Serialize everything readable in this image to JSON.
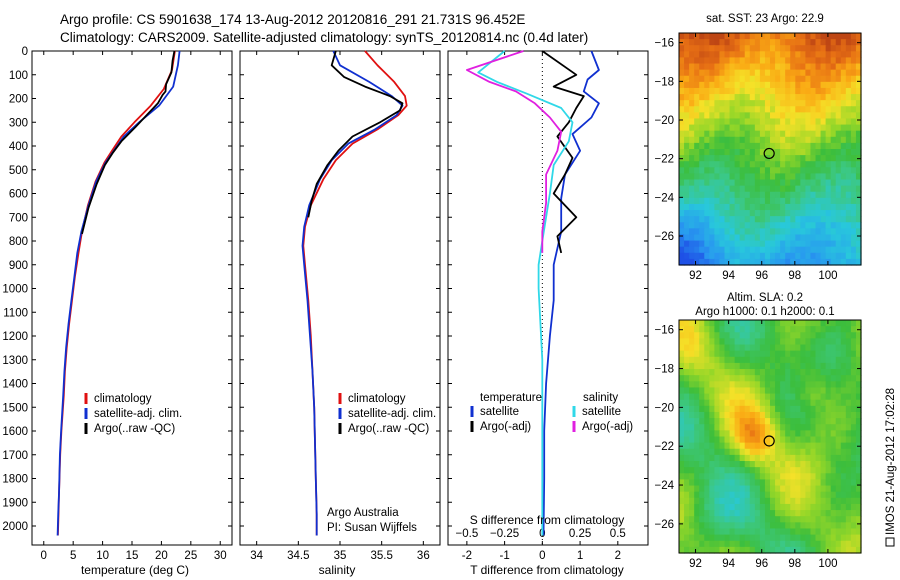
{
  "header": {
    "line1": "Argo profile: CS 5901638_174 13-Aug-2012 20120816_291 21.731S 96.452E",
    "line2": "Climatology: CARS2009. Satellite-adjusted climatology: synTS_20120814.nc (0.4d later)"
  },
  "side_stamp": "IMOS 21-Aug-2012 17:02:28",
  "colors": {
    "climatology": "#e01010",
    "satellite": "#1030d0",
    "argo": "#000000",
    "sal_satellite": "#30d8e8",
    "sal_argo": "#e020e0"
  },
  "chart_data": [
    {
      "type": "line",
      "panel": "temperature",
      "xlabel": "temperature (deg C)",
      "xlim": [
        -2,
        32
      ],
      "ylim": [
        2080,
        0
      ],
      "xticks": [
        0,
        5,
        10,
        15,
        20,
        25,
        30
      ],
      "yticks": [
        0,
        100,
        200,
        300,
        400,
        500,
        600,
        700,
        800,
        900,
        1000,
        1100,
        1200,
        1300,
        1400,
        1500,
        1600,
        1700,
        1800,
        1900,
        2000
      ],
      "legend": [
        "climatology",
        "satellite-adj. clim.",
        "Argo(..raw -QC)"
      ],
      "series": [
        {
          "name": "climatology",
          "color_key": "climatology",
          "x": [
            22.3,
            21.8,
            20.4,
            18.2,
            15.4,
            13.2,
            11.6,
            10.3,
            8.8,
            7.5,
            6.5,
            5.9,
            5.3,
            4.8,
            4.3,
            3.9,
            3.6,
            3.4,
            3.0,
            2.8,
            2.6,
            2.5,
            2.4
          ],
          "y": [
            0,
            80,
            160,
            230,
            300,
            360,
            420,
            470,
            550,
            650,
            760,
            850,
            950,
            1050,
            1150,
            1250,
            1350,
            1450,
            1600,
            1700,
            1850,
            1950,
            2040
          ]
        },
        {
          "name": "satellite-adj. clim.",
          "color_key": "satellite",
          "x": [
            23.1,
            22.8,
            22.0,
            19.6,
            16.2,
            13.6,
            11.9,
            10.5,
            8.9,
            7.6,
            6.4,
            5.7,
            5.2,
            4.7,
            4.2,
            3.8,
            3.5,
            3.3,
            2.95,
            2.75,
            2.6,
            2.45,
            2.35
          ],
          "y": [
            0,
            60,
            150,
            230,
            300,
            360,
            420,
            470,
            550,
            650,
            760,
            850,
            950,
            1050,
            1150,
            1250,
            1350,
            1450,
            1600,
            1700,
            1850,
            1950,
            2040
          ]
        },
        {
          "name": "Argo(..raw -QC)",
          "color_key": "argo",
          "x": [
            22.2,
            21.9,
            21.7,
            20.8,
            20.7,
            20.2,
            19.4,
            17.5,
            15.6,
            13.2,
            11.7,
            10.4,
            9.0,
            7.6,
            6.5
          ],
          "y": [
            0,
            40,
            90,
            140,
            170,
            185,
            220,
            270,
            320,
            380,
            430,
            480,
            560,
            660,
            770
          ]
        }
      ],
      "annotations": []
    },
    {
      "type": "line",
      "panel": "salinity",
      "xlabel": "salinity",
      "xlim": [
        33.8,
        36.2
      ],
      "ylim": [
        2080,
        0
      ],
      "xticks": [
        34,
        34.5,
        35,
        35.5,
        36
      ],
      "legend": [
        "climatology",
        "satellite-adj. clim.",
        "Argo(..raw -QC)"
      ],
      "series": [
        {
          "name": "climatology",
          "color_key": "climatology",
          "x": [
            35.3,
            35.45,
            35.65,
            35.78,
            35.8,
            35.7,
            35.45,
            35.15,
            34.95,
            34.8,
            34.65,
            34.58,
            34.56,
            34.58,
            34.62,
            34.65,
            34.67,
            34.69,
            34.7,
            34.71,
            34.72,
            34.72
          ],
          "y": [
            0,
            60,
            130,
            190,
            230,
            270,
            330,
            390,
            460,
            540,
            650,
            740,
            820,
            900,
            1050,
            1200,
            1350,
            1500,
            1650,
            1800,
            1950,
            2040
          ]
        },
        {
          "name": "satellite-adj. clim.",
          "color_key": "satellite",
          "x": [
            34.92,
            35.0,
            35.35,
            35.62,
            35.75,
            35.68,
            35.42,
            35.1,
            34.9,
            34.76,
            34.63,
            34.57,
            34.55,
            34.57,
            34.61,
            34.64,
            34.67,
            34.69,
            34.7,
            34.71,
            34.72,
            34.72
          ],
          "y": [
            0,
            60,
            130,
            190,
            230,
            270,
            330,
            390,
            460,
            540,
            650,
            740,
            820,
            900,
            1050,
            1200,
            1350,
            1500,
            1650,
            1800,
            1950,
            2040
          ]
        },
        {
          "name": "Argo(..raw -QC)",
          "color_key": "argo",
          "x": [
            34.95,
            34.9,
            35.05,
            35.3,
            35.6,
            35.75,
            35.72,
            35.48,
            35.15,
            34.98,
            34.85,
            34.72,
            34.66,
            34.62
          ],
          "y": [
            0,
            60,
            110,
            150,
            190,
            220,
            250,
            300,
            360,
            420,
            480,
            560,
            630,
            700
          ]
        }
      ],
      "annotations": [
        "Argo Australia",
        "PI: Susan Wijffels"
      ]
    },
    {
      "type": "line",
      "panel": "difference",
      "xlabel": "T difference from climatology",
      "xlabel2": "S difference from climatology",
      "xlim": [
        -2.5,
        2.8
      ],
      "ylim": [
        2080,
        0
      ],
      "xticks": [
        -2,
        -1,
        0,
        1,
        2
      ],
      "xticks2": [
        -0.5,
        -0.25,
        0,
        0.25,
        0.5
      ],
      "legend_headers": [
        "temperature",
        "salinity"
      ],
      "legend": [
        "satellite",
        "Argo(-adj)",
        "satellite",
        "Argo(-adj)"
      ],
      "series": [
        {
          "name": "satellite",
          "group": "temperature",
          "color_key": "satellite",
          "x": [
            1.3,
            1.5,
            1.2,
            1.1,
            1.5,
            1.3,
            0.8,
            1.0,
            0.6,
            0.5,
            0.5,
            0.3,
            0.3,
            0.2,
            0.1,
            0.05,
            0.05,
            0.03
          ],
          "y": [
            0,
            80,
            120,
            170,
            220,
            280,
            350,
            420,
            520,
            620,
            760,
            900,
            1050,
            1200,
            1400,
            1600,
            1800,
            2040
          ]
        },
        {
          "name": "Argo(-adj)",
          "group": "temperature",
          "color_key": "argo",
          "x": [
            0.0,
            0.9,
            0.3,
            1.1,
            0.9,
            0.7,
            0.4,
            0.8,
            0.6,
            0.3,
            0.9,
            0.4,
            0.5
          ],
          "y": [
            0,
            100,
            150,
            190,
            240,
            300,
            360,
            450,
            520,
            600,
            700,
            780,
            850
          ]
        },
        {
          "name": "satellite",
          "group": "salinity",
          "color_key": "sal_satellite",
          "x": [
            -1.0,
            -1.7,
            -1.2,
            -0.4,
            0.5,
            0.8,
            0.7,
            0.3,
            0.2,
            0.0,
            -0.1,
            -0.1,
            0.0,
            0.0,
            0.0
          ],
          "y": [
            0,
            90,
            130,
            180,
            240,
            300,
            380,
            480,
            600,
            800,
            900,
            1000,
            1300,
            1700,
            2040
          ]
        },
        {
          "name": "Argo(-adj)",
          "group": "salinity",
          "color_key": "sal_argo",
          "x": [
            -0.5,
            -2.0,
            -1.4,
            -0.7,
            -0.2,
            0.2,
            0.5,
            0.4,
            0.1,
            0.1,
            0.0,
            0.0
          ],
          "y": [
            0,
            80,
            130,
            170,
            220,
            280,
            340,
            420,
            520,
            640,
            760,
            850
          ]
        }
      ]
    },
    {
      "type": "heatmap",
      "panel": "sst_map",
      "title": "sat. SST: 23  Argo: 22.9",
      "xlim": [
        91,
        102
      ],
      "ylim": [
        -27.5,
        -15.5
      ],
      "xticks": [
        92,
        94,
        96,
        98,
        100
      ],
      "yticks": [
        -16,
        -18,
        -20,
        -22,
        -24,
        -26
      ],
      "marker": {
        "lon": 96.45,
        "lat": -21.73
      }
    },
    {
      "type": "heatmap",
      "panel": "sla_map",
      "title": "Altim. SLA: 0.2",
      "subtitle": "Argo h1000: 0.1 h2000: 0.1",
      "xlim": [
        91,
        102
      ],
      "ylim": [
        -27.5,
        -15.5
      ],
      "xticks": [
        92,
        94,
        96,
        98,
        100
      ],
      "yticks": [
        -16,
        -18,
        -20,
        -22,
        -24,
        -26
      ],
      "marker": {
        "lon": 96.45,
        "lat": -21.73
      }
    }
  ]
}
